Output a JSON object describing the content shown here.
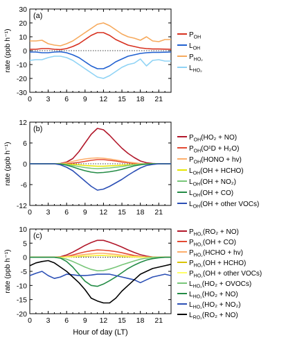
{
  "chart_data": [
    {
      "type": "line",
      "panel_label": "(a)",
      "ylabel": "rate (ppb h⁻¹)",
      "xlim": [
        0,
        23
      ],
      "ylim": [
        -30,
        30
      ],
      "yticks": [
        -30,
        -20,
        -10,
        0,
        10,
        20,
        30
      ],
      "xticks": [
        0,
        3,
        6,
        9,
        12,
        15,
        18,
        21
      ],
      "x": [
        0,
        1,
        2,
        3,
        4,
        5,
        6,
        7,
        8,
        9,
        10,
        11,
        12,
        13,
        14,
        15,
        16,
        17,
        18,
        19,
        20,
        21,
        22,
        23
      ],
      "series": [
        {
          "name": "P_OH",
          "label_main": "P",
          "label_sub": "OH",
          "label_rest": "",
          "color": "#d7301f",
          "values": [
            1,
            1,
            1.5,
            1.5,
            1,
            0.8,
            1.5,
            3,
            5,
            8,
            11,
            13,
            13,
            11,
            8,
            6,
            4,
            3,
            2,
            1.5,
            1.2,
            1.2,
            1.1,
            1
          ]
        },
        {
          "name": "L_OH",
          "label_main": "L",
          "label_sub": "OH",
          "label_rest": "",
          "color": "#2060d0",
          "values": [
            -1,
            -1,
            -1.5,
            -1.5,
            -1,
            -0.8,
            -1.5,
            -3,
            -5,
            -8,
            -11,
            -13,
            -13,
            -11,
            -8,
            -6,
            -4,
            -3,
            -2,
            -1.5,
            -1.2,
            -1.2,
            -1.1,
            -1
          ]
        },
        {
          "name": "P_HO2",
          "label_main": "P",
          "label_sub": "HO₂",
          "label_rest": "",
          "color": "#f6a95c",
          "values": [
            7,
            7,
            7.5,
            5,
            4,
            3.5,
            5,
            7,
            10,
            13,
            16,
            19,
            20,
            18,
            15,
            12,
            10,
            9,
            7.5,
            10,
            7,
            6.5,
            8,
            8
          ]
        },
        {
          "name": "L_HO2",
          "label_main": "L",
          "label_sub": "HO₂",
          "label_rest": "",
          "color": "#8fd3f5",
          "values": [
            -7,
            -6.5,
            -6.5,
            -5,
            -4,
            -4,
            -5,
            -7,
            -10,
            -13,
            -16,
            -19,
            -20,
            -18,
            -15,
            -12,
            -10,
            -9,
            -6,
            -11,
            -7,
            -6.5,
            -7.5,
            -7.5
          ]
        }
      ]
    },
    {
      "type": "line",
      "panel_label": "(b)",
      "ylabel": "rate (ppb h⁻¹)",
      "xlim": [
        0,
        23
      ],
      "ylim": [
        -12,
        12
      ],
      "yticks": [
        -12,
        -6,
        0,
        6,
        12
      ],
      "xticks": [
        0,
        3,
        6,
        9,
        12,
        15,
        18,
        21
      ],
      "x": [
        0,
        1,
        2,
        3,
        4,
        5,
        6,
        7,
        8,
        9,
        10,
        11,
        12,
        13,
        14,
        15,
        16,
        17,
        18,
        19,
        20,
        21,
        22,
        23
      ],
      "series": [
        {
          "name": "P_OH(HO2 + NO)",
          "label_main": "P",
          "label_sub": "OH",
          "label_rest": "(HO₂ + NO)",
          "color": "#b2182b",
          "values": [
            0,
            0,
            0,
            0,
            0,
            0.1,
            0.5,
            1.5,
            3.5,
            6,
            8.5,
            10.2,
            9.8,
            8.2,
            6.3,
            4.5,
            3,
            1.8,
            0.8,
            0.3,
            0.1,
            0,
            0,
            0
          ]
        },
        {
          "name": "P_OH(O1D + H2O)",
          "label_main": "P",
          "label_sub": "OH",
          "label_rest": "(O¹D + H₂O)",
          "color": "#e34a33",
          "values": [
            0,
            0,
            0,
            0,
            0,
            0,
            0,
            0.2,
            0.4,
            0.7,
            1,
            1.2,
            1.2,
            1,
            0.8,
            0.5,
            0.3,
            0.1,
            0,
            0,
            0,
            0,
            0,
            0
          ]
        },
        {
          "name": "P_OH(HONO + hv)",
          "label_main": "P",
          "label_sub": "OH",
          "label_rest": "(HONO + hv)",
          "color": "#fdae6b",
          "values": [
            0,
            0,
            0,
            0,
            0,
            0,
            0.3,
            0.7,
            1.1,
            1.4,
            1.6,
            1.7,
            1.6,
            1.4,
            1.1,
            0.8,
            0.5,
            0.3,
            0.1,
            0,
            0,
            0,
            0,
            0
          ]
        },
        {
          "name": "L_OH(OH + HCHO)",
          "label_main": "L",
          "label_sub": "OH",
          "label_rest": "(OH + HCHO)",
          "color": "#e6e600",
          "values": [
            0,
            0,
            0,
            0,
            0,
            0,
            -0.1,
            -0.2,
            -0.3,
            -0.5,
            -0.6,
            -0.7,
            -0.7,
            -0.6,
            -0.5,
            -0.4,
            -0.3,
            -0.2,
            -0.1,
            0,
            0,
            0,
            0,
            0
          ]
        },
        {
          "name": "L_OH(OH + NO2)",
          "label_main": "L",
          "label_sub": "OH",
          "label_rest": "(OH + NO₂)",
          "color": "#78c679",
          "values": [
            0,
            0,
            0,
            0,
            0,
            0,
            -0.2,
            -0.5,
            -0.8,
            -1.1,
            -1.3,
            -1.4,
            -1.3,
            -1.2,
            -1,
            -0.8,
            -0.5,
            -0.3,
            -0.1,
            0,
            0,
            0,
            0,
            0
          ]
        },
        {
          "name": "L_OH(OH + CO)",
          "label_main": "L",
          "label_sub": "OH",
          "label_rest": "(OH + CO)",
          "color": "#238b45",
          "values": [
            0,
            0,
            0,
            0,
            0,
            -0.1,
            -0.4,
            -0.9,
            -1.5,
            -2,
            -2.4,
            -2.6,
            -2.5,
            -2.3,
            -2,
            -1.6,
            -1.1,
            -0.6,
            -0.3,
            -0.1,
            0,
            0,
            0,
            0
          ]
        },
        {
          "name": "L_OH(OH + other VOCs)",
          "label_main": "L",
          "label_sub": "OH",
          "label_rest": "(OH + other VOCs)",
          "color": "#2b4fb5",
          "values": [
            0,
            0,
            0,
            0,
            0,
            -0.3,
            -1,
            -2,
            -3.5,
            -5,
            -6.5,
            -7.6,
            -7.3,
            -6.5,
            -5.5,
            -4.5,
            -3.3,
            -2.2,
            -1.2,
            -0.5,
            -0.2,
            0,
            0,
            0
          ]
        }
      ]
    },
    {
      "type": "line",
      "panel_label": "(c)",
      "ylabel": "rate (ppb h⁻¹)",
      "xlim": [
        0,
        23
      ],
      "ylim": [
        -20,
        10
      ],
      "yticks": [
        -20,
        -15,
        -10,
        -5,
        0,
        5,
        10
      ],
      "xticks": [
        0,
        3,
        6,
        9,
        12,
        15,
        18,
        21
      ],
      "xlabel": "Hour of day (LT)",
      "x": [
        0,
        1,
        2,
        3,
        4,
        5,
        6,
        7,
        8,
        9,
        10,
        11,
        12,
        13,
        14,
        15,
        16,
        17,
        18,
        19,
        20,
        21,
        22,
        23
      ],
      "series": [
        {
          "name": "P_HO2(RO2 + NO)",
          "label_main": "P",
          "label_sub": "HO₂",
          "label_rest": "(RO₂ + NO)",
          "color": "#b2182b",
          "values": [
            0,
            0,
            0,
            0,
            0,
            0.2,
            0.8,
            1.8,
            3,
            4.2,
            5.2,
            6,
            6,
            5.3,
            4.5,
            3.6,
            2.6,
            1.7,
            0.9,
            0.4,
            0.1,
            0,
            0,
            0
          ]
        },
        {
          "name": "P_HO2(OH + CO)",
          "label_main": "P",
          "label_sub": "HO₂",
          "label_rest": "(OH + CO)",
          "color": "#e34a33",
          "values": [
            0,
            0,
            0,
            0,
            0,
            0,
            0.3,
            0.8,
            1.4,
            1.9,
            2.3,
            2.6,
            2.5,
            2.3,
            2,
            1.6,
            1.1,
            0.6,
            0.3,
            0.1,
            0,
            0,
            0,
            0
          ]
        },
        {
          "name": "P_HO2(HCHO + hv)",
          "label_main": "P",
          "label_sub": "HO₂",
          "label_rest": "(HCHO + hv)",
          "color": "#fdae6b",
          "values": [
            0,
            0,
            0,
            0,
            0,
            0,
            0.2,
            0.4,
            0.7,
            1,
            1.2,
            1.4,
            1.4,
            1.2,
            1,
            0.7,
            0.5,
            0.3,
            0.1,
            0,
            0,
            0,
            0,
            0
          ]
        },
        {
          "name": "P_HO2(OH + HCHO)",
          "label_main": "P",
          "label_sub": "HO₂",
          "label_rest": "(OH + HCHO)",
          "color": "#d9c300",
          "values": [
            0,
            0,
            0,
            0,
            0,
            0,
            0.1,
            0.2,
            0.3,
            0.4,
            0.5,
            0.6,
            0.6,
            0.5,
            0.4,
            0.3,
            0.2,
            0.1,
            0,
            0,
            0,
            0,
            0,
            0
          ]
        },
        {
          "name": "P_HO2(OH + other VOCs)",
          "label_main": "P",
          "label_sub": "HO₂",
          "label_rest": "(OH + other VOCs)",
          "color": "#ffff66",
          "values": [
            0,
            0,
            0,
            0,
            0,
            0,
            0.1,
            0.2,
            0.4,
            0.5,
            0.6,
            0.7,
            0.7,
            0.6,
            0.5,
            0.4,
            0.3,
            0.2,
            0.1,
            0,
            0,
            0,
            0,
            0
          ]
        },
        {
          "name": "L_HO2(HO2 + OVOCs)",
          "label_main": "L",
          "label_sub": "HO₂",
          "label_rest": "(HO₂ + OVOCs)",
          "color": "#78c679",
          "values": [
            0,
            0,
            0,
            0,
            0,
            -0.2,
            -0.7,
            -1.5,
            -2.5,
            -3.5,
            -4.3,
            -4.8,
            -4.7,
            -4.2,
            -3.5,
            -2.7,
            -2,
            -1.3,
            -0.7,
            -0.3,
            -0.1,
            0,
            0,
            0
          ]
        },
        {
          "name": "L_HO2(HO2 + NO)",
          "label_main": "L",
          "label_sub": "HO₂",
          "label_rest": "(HO₂ + NO)",
          "color": "#238b45",
          "values": [
            0,
            0,
            0,
            0,
            0,
            -0.3,
            -1.5,
            -3.5,
            -6,
            -8.5,
            -10,
            -10.3,
            -9.5,
            -8.3,
            -7,
            -5.5,
            -4,
            -2.8,
            -1.8,
            -1,
            -0.5,
            -0.2,
            0,
            0
          ]
        },
        {
          "name": "L_HO2(HO2 + NO2)",
          "label_main": "L",
          "label_sub": "HO₂",
          "label_rest": "(HO₂ + NO₂)",
          "color": "#2b4fb5",
          "values": [
            -6.5,
            -5.7,
            -5,
            -6.5,
            -7.5,
            -7,
            -6,
            -6.2,
            -6.5,
            -6.5,
            -6.3,
            -6,
            -6,
            -6,
            -6.5,
            -7,
            -7.5,
            -8,
            -9,
            -8,
            -7,
            -6.5,
            -6,
            -6.5
          ]
        },
        {
          "name": "L_RO2(RO2 + NO)",
          "label_main": "L",
          "label_sub": "RO₂",
          "label_rest": "(RO₂ + NO)",
          "color": "#000000",
          "values": [
            -3,
            -2,
            -1.5,
            -1.2,
            -2,
            -3.5,
            -5,
            -7,
            -9,
            -11.5,
            -14.5,
            -15.5,
            -16.2,
            -16.2,
            -14.5,
            -12,
            -10,
            -8,
            -6,
            -5,
            -4,
            -3.5,
            -3,
            -2.5
          ]
        }
      ]
    }
  ]
}
